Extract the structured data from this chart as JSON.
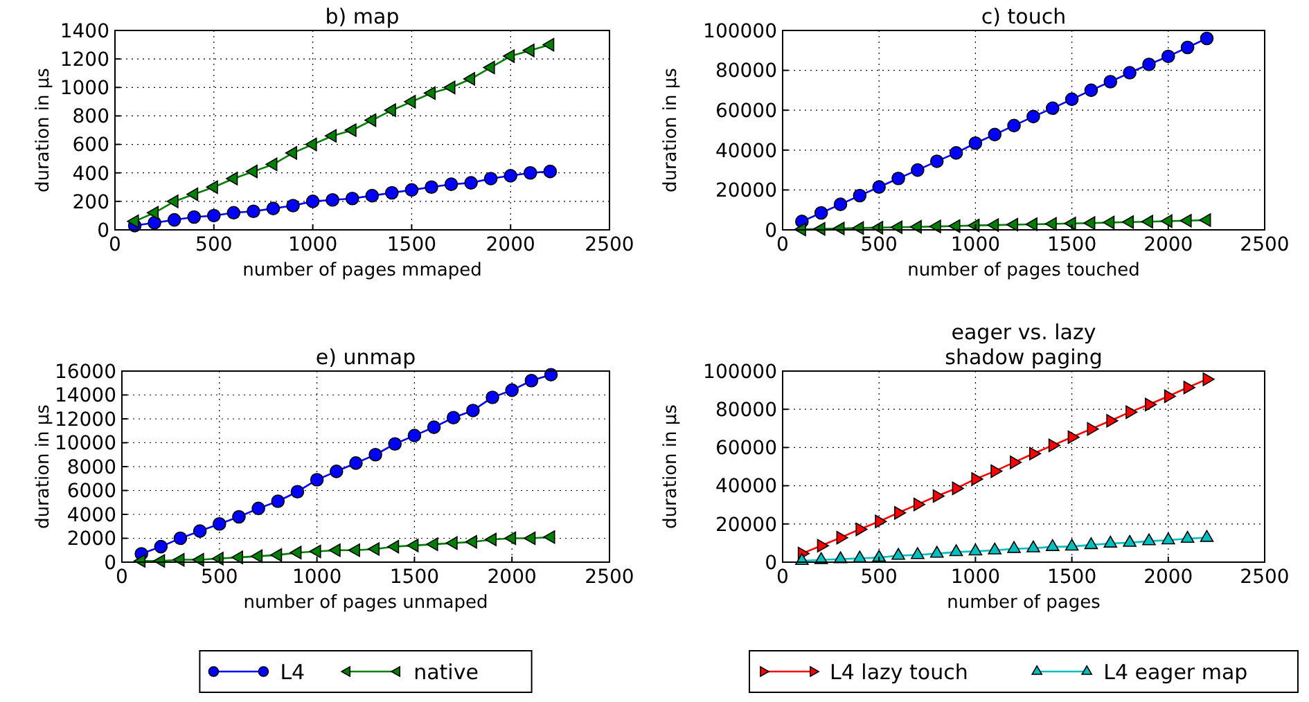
{
  "chart_data": [
    {
      "type": "line",
      "title": "b) map",
      "xlabel": "number of pages mmaped",
      "ylabel": "duration in µs",
      "x": [
        100,
        200,
        300,
        400,
        500,
        600,
        700,
        800,
        900,
        1000,
        1100,
        1200,
        1300,
        1400,
        1500,
        1600,
        1700,
        1800,
        1900,
        2000,
        2100,
        2200
      ],
      "xlim": [
        0,
        2500
      ],
      "xticks": [
        0,
        500,
        1000,
        1500,
        2000,
        2500
      ],
      "ylim": [
        0,
        1400
      ],
      "yticks": [
        0,
        200,
        400,
        600,
        800,
        1000,
        1200,
        1400
      ],
      "grid": true,
      "legend": false,
      "series": [
        {
          "color": "#0000ff",
          "marker": "circle",
          "values": [
            30,
            50,
            70,
            90,
            100,
            120,
            130,
            150,
            170,
            200,
            210,
            220,
            240,
            260,
            280,
            300,
            320,
            330,
            360,
            380,
            400,
            410
          ]
        },
        {
          "color": "#008000",
          "marker": "triangle-left",
          "values": [
            60,
            120,
            200,
            250,
            300,
            360,
            410,
            460,
            540,
            600,
            660,
            700,
            770,
            840,
            900,
            960,
            1000,
            1060,
            1140,
            1220,
            1260,
            1300
          ]
        }
      ]
    },
    {
      "type": "line",
      "title": "c) touch",
      "xlabel": "number of pages touched",
      "ylabel": "duration in µs",
      "x": [
        100,
        200,
        300,
        400,
        500,
        600,
        700,
        800,
        900,
        1000,
        1100,
        1200,
        1300,
        1400,
        1500,
        1600,
        1700,
        1800,
        1900,
        2000,
        2100,
        2200
      ],
      "xlim": [
        0,
        2500
      ],
      "xticks": [
        0,
        500,
        1000,
        1500,
        2000,
        2500
      ],
      "ylim": [
        0,
        100000
      ],
      "yticks": [
        0,
        20000,
        40000,
        60000,
        80000,
        100000
      ],
      "grid": true,
      "legend": false,
      "series": [
        {
          "color": "#0000ff",
          "marker": "circle",
          "values": [
            4200,
            8500,
            12800,
            17200,
            21500,
            25800,
            30000,
            34400,
            38600,
            43500,
            47800,
            52300,
            56800,
            61000,
            65500,
            70000,
            74300,
            78800,
            83000,
            87000,
            91500,
            96000
          ]
        },
        {
          "color": "#008000",
          "marker": "triangle-left",
          "values": [
            200,
            500,
            700,
            900,
            1100,
            1300,
            1500,
            1700,
            1900,
            2200,
            2400,
            2600,
            2800,
            3000,
            3200,
            3400,
            3700,
            3900,
            4100,
            4400,
            4600,
            4900
          ]
        }
      ]
    },
    {
      "type": "line",
      "title": "e) unmap",
      "xlabel": "number of pages unmaped",
      "ylabel": "duration in µs",
      "x": [
        100,
        200,
        300,
        400,
        500,
        600,
        700,
        800,
        900,
        1000,
        1100,
        1200,
        1300,
        1400,
        1500,
        1600,
        1700,
        1800,
        1900,
        2000,
        2100,
        2200
      ],
      "xlim": [
        0,
        2500
      ],
      "xticks": [
        0,
        500,
        1000,
        1500,
        2000,
        2500
      ],
      "ylim": [
        0,
        16000
      ],
      "yticks": [
        0,
        2000,
        4000,
        6000,
        8000,
        10000,
        12000,
        14000,
        16000
      ],
      "grid": true,
      "legend": "bottom",
      "series": [
        {
          "name": "L4",
          "color": "#0000ff",
          "marker": "circle",
          "values": [
            700,
            1300,
            2000,
            2600,
            3200,
            3800,
            4500,
            5100,
            5900,
            6900,
            7600,
            8300,
            9000,
            9900,
            10600,
            11300,
            12100,
            12700,
            13800,
            14400,
            15200,
            15700
          ]
        },
        {
          "name": "native",
          "color": "#008000",
          "marker": "triangle-left",
          "values": [
            100,
            100,
            200,
            200,
            300,
            400,
            500,
            600,
            800,
            900,
            1000,
            1000,
            1100,
            1300,
            1400,
            1500,
            1600,
            1700,
            1900,
            2000,
            2000,
            2100
          ]
        }
      ]
    },
    {
      "type": "line",
      "title": "eager vs. lazy\nshadow paging",
      "xlabel": "number of pages",
      "ylabel": "duration in µs",
      "x": [
        100,
        200,
        300,
        400,
        500,
        600,
        700,
        800,
        900,
        1000,
        1100,
        1200,
        1300,
        1400,
        1500,
        1600,
        1700,
        1800,
        1900,
        2000,
        2100,
        2200
      ],
      "xlim": [
        0,
        2500
      ],
      "xticks": [
        0,
        500,
        1000,
        1500,
        2000,
        2500
      ],
      "ylim": [
        0,
        100000
      ],
      "yticks": [
        0,
        20000,
        40000,
        60000,
        80000,
        100000
      ],
      "grid": true,
      "legend": "bottom",
      "series": [
        {
          "name": "L4 lazy touch",
          "color": "#ff0000",
          "marker": "triangle-right",
          "values": [
            4500,
            8600,
            12800,
            17200,
            21300,
            25800,
            30200,
            34600,
            38600,
            43500,
            47600,
            52200,
            56800,
            61100,
            65400,
            69700,
            74000,
            78500,
            82500,
            86800,
            91400,
            95700
          ]
        },
        {
          "name": "L4 eager map",
          "color": "#00bfbf",
          "marker": "triangle",
          "values": [
            700,
            1200,
            1600,
            2000,
            2400,
            3400,
            3800,
            4500,
            5300,
            5700,
            6200,
            7000,
            7300,
            8000,
            8200,
            9000,
            9800,
            10200,
            11000,
            11500,
            12300,
            12800
          ]
        }
      ]
    }
  ]
}
